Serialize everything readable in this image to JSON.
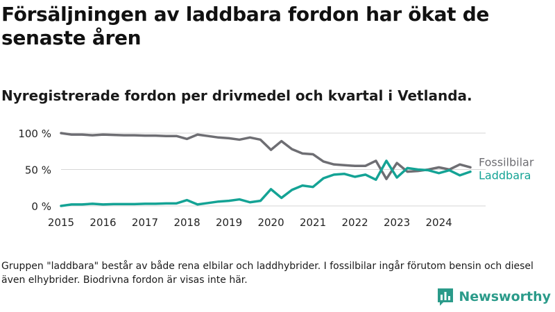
{
  "title": "Försäljningen av laddbara fordon har ökat de senaste åren",
  "subtitle": "Nyregistrerade fordon per drivmedel och kvartal i Vetlanda.",
  "footnote": "Gruppen \"laddbara\" består av både rena elbilar och laddhybrider. I fossilbilar ingår förutom bensin och diesel även elhybrider. Biodrivna fordon är visas inte här.",
  "brand": {
    "name": "Newsworthy",
    "logo_icon": "bar-chart-icon"
  },
  "colors": {
    "fossil": "#6e6e73",
    "laddbara": "#14a395",
    "grid": "#d6d6d6",
    "brand": "#2b9b8a"
  },
  "chart_data": {
    "type": "line",
    "title": "Nyregistrerade fordon per drivmedel och kvartal i Vetlanda.",
    "xlabel": "",
    "ylabel": "",
    "x_unit": "kvartal",
    "x_start": 2015,
    "x_step": 0.25,
    "xlim": [
      2015,
      2024.75
    ],
    "ylim": [
      0,
      100
    ],
    "y_ticks": [
      0,
      50,
      100
    ],
    "y_tick_labels": [
      "0 %",
      "50 %",
      "100 %"
    ],
    "x_ticks": [
      2015,
      2016,
      2017,
      2018,
      2019,
      2020,
      2021,
      2022,
      2023,
      2024
    ],
    "x_tick_labels": [
      "2015",
      "2016",
      "2017",
      "2018",
      "2019",
      "2020",
      "2021",
      "2022",
      "2023",
      "2024"
    ],
    "series": [
      {
        "name": "Fossilbilar",
        "label": "Fossilbilar",
        "color_key": "fossil",
        "values": [
          100,
          98,
          98,
          97,
          98,
          97.5,
          97,
          97,
          96.5,
          96.5,
          96,
          96,
          92,
          98,
          96,
          94,
          93,
          91,
          94,
          91,
          77,
          89,
          78,
          72,
          71,
          61,
          57,
          56,
          55,
          55,
          62,
          37,
          59,
          47,
          48,
          50,
          53,
          50,
          57,
          53
        ]
      },
      {
        "name": "Laddbara",
        "label": "Laddbara",
        "color_key": "laddbara",
        "values": [
          0,
          2,
          2,
          3,
          2,
          2.5,
          2.5,
          2.5,
          3,
          3,
          3.5,
          3.5,
          8,
          2,
          4,
          6,
          7,
          9,
          5,
          7,
          23,
          11,
          22,
          28,
          26,
          38,
          43,
          44,
          40,
          43,
          36,
          62,
          39,
          52,
          50,
          49,
          45,
          49,
          42,
          47
        ]
      }
    ]
  }
}
